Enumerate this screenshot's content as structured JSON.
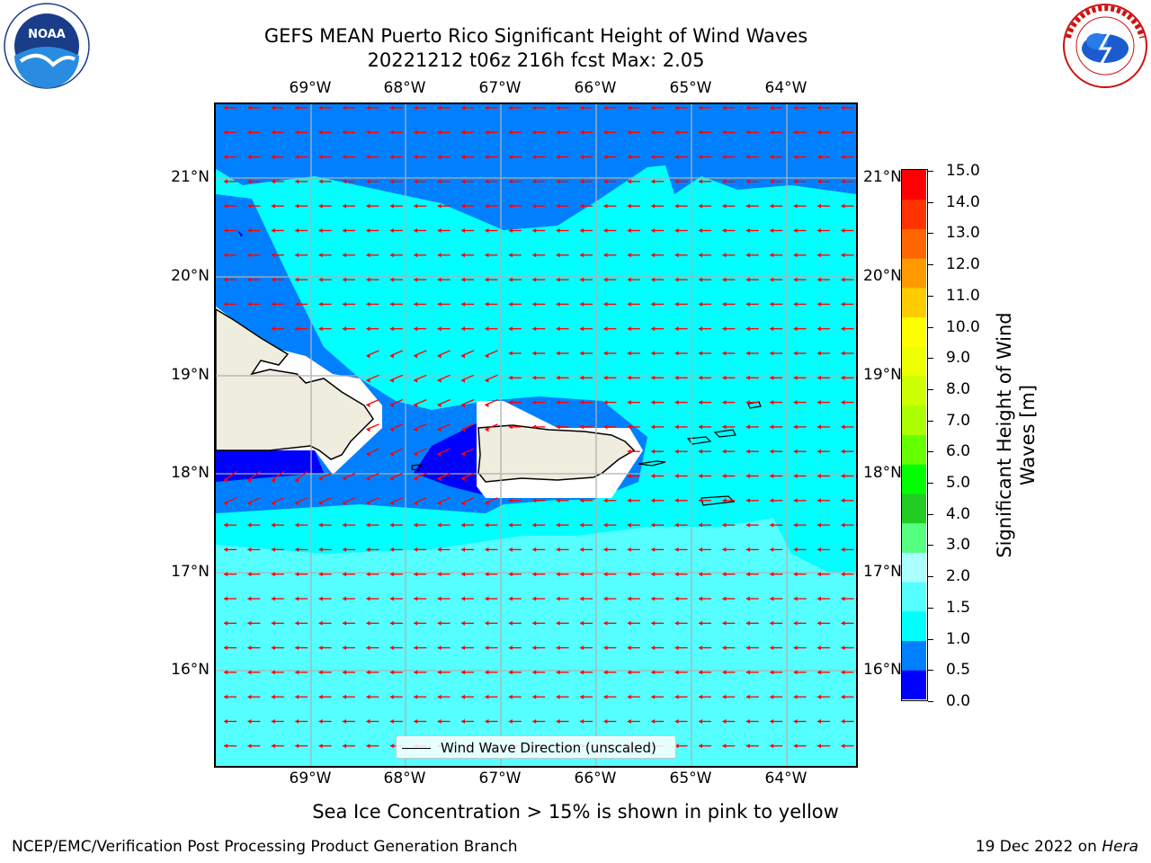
{
  "title": {
    "line1": "GEFS MEAN Puerto Rico Significant Height of Wind Waves",
    "line2": "20221212 t06z 216h fcst   Max: 2.05"
  },
  "logos": {
    "left": {
      "icon": "noaa-logo",
      "text": "NOAA"
    },
    "right": {
      "icon": "nws-logo",
      "text": "NATIONAL WEATHER SERVICE"
    }
  },
  "map": {
    "lon_ticks": [
      "69°W",
      "68°W",
      "67°W",
      "66°W",
      "65°W",
      "64°W"
    ],
    "lat_ticks": [
      "21°N",
      "20°N",
      "19°N",
      "18°N",
      "17°N",
      "16°N"
    ],
    "lon_range": [
      -70,
      -63.25
    ],
    "lat_range": [
      15.0,
      21.75
    ],
    "gridlines": true,
    "land_color": "#efedde",
    "coast_color": "#000000",
    "arrow_color": "#ff0000",
    "grid_color": "#b0b0b0",
    "arrow_direction": "westward (wind waves moving toward the west, slightly south near islands)"
  },
  "legend": {
    "label": "Wind Wave Direction (unscaled)",
    "placement": "bottom-center"
  },
  "colorbar": {
    "label": "Significant Height of Wind Waves [m]",
    "tick_labels": [
      "15.0",
      "14.0",
      "13.0",
      "12.0",
      "11.0",
      "10.0",
      "9.0",
      "8.0",
      "7.0",
      "6.0",
      "5.0",
      "4.0",
      "3.0",
      "2.0",
      "1.5",
      "1.0",
      "0.5",
      "0.0"
    ],
    "colors": [
      "#0000ff",
      "#0080ff",
      "#00ffff",
      "#55ffff",
      "#aaffff",
      "#55ff7f",
      "#22cc22",
      "#00ff00",
      "#66ff00",
      "#aaff00",
      "#ccff00",
      "#eeff00",
      "#ffff00",
      "#ffcc00",
      "#ff9900",
      "#ff6600",
      "#ff3300",
      "#ff0000"
    ]
  },
  "footer": {
    "note": "Sea Ice Concentration > 15% is shown in pink to yellow",
    "left": "NCEP/EMC/Verification Post Processing Product Generation Branch",
    "right_prefix": "19 Dec 2022 on ",
    "right_host": "Hera"
  }
}
